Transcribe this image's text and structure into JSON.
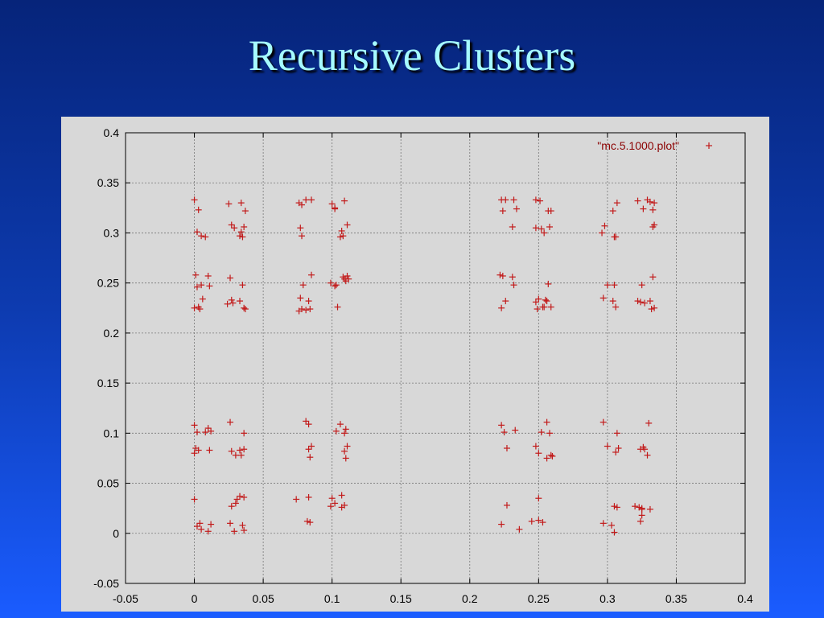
{
  "slide": {
    "title": "Recursive Clusters"
  },
  "colors": {
    "background_top": "#06247a",
    "background_bottom": "#1a5cff",
    "title": "#a6fbff",
    "plot_bg": "#d8d8d8",
    "marker": "#c21a1a"
  },
  "chart_data": {
    "type": "scatter",
    "title": "",
    "xlabel": "",
    "ylabel": "",
    "xlim": [
      -0.05,
      0.4
    ],
    "ylim": [
      -0.05,
      0.4
    ],
    "xticks": [
      "-0.05",
      "0",
      "0.05",
      "0.1",
      "0.15",
      "0.2",
      "0.25",
      "0.3",
      "0.35",
      "0.4"
    ],
    "yticks": [
      "-0.05",
      "0",
      "0.05",
      "0.1",
      "0.15",
      "0.2",
      "0.25",
      "0.3",
      "0.35",
      "0.4"
    ],
    "grid": true,
    "legend": {
      "position": "top-right",
      "entries": [
        "\"mc.5.1000.plot\""
      ]
    },
    "marker": "+",
    "series": [
      {
        "name": "\"mc.5.1000.plot\"",
        "x": [
          0.0,
          0.003,
          0.002,
          0.005,
          0.008,
          0.025,
          0.034,
          0.037,
          0.027,
          0.029,
          0.033,
          0.035,
          0.036,
          0.034,
          0.076,
          0.078,
          0.081,
          0.085,
          0.077,
          0.078,
          0.1,
          0.102,
          0.109,
          0.111,
          0.108,
          0.106,
          0.107,
          0.102,
          0.223,
          0.226,
          0.224,
          0.232,
          0.234,
          0.231,
          0.248,
          0.251,
          0.257,
          0.259,
          0.248,
          0.252,
          0.258,
          0.254,
          0.298,
          0.307,
          0.304,
          0.306,
          0.329,
          0.331,
          0.333,
          0.322,
          0.326,
          0.334,
          0.333,
          0.334,
          0.305,
          0.296,
          0.0,
          0.003,
          0.004,
          0.006,
          0.005,
          0.01,
          0.011,
          0.001,
          0.002,
          0.027,
          0.033,
          0.037,
          0.024,
          0.036,
          0.035,
          0.026,
          0.028,
          0.076,
          0.078,
          0.081,
          0.084,
          0.077,
          0.079,
          0.085,
          0.083,
          0.099,
          0.103,
          0.11,
          0.108,
          0.111,
          0.112,
          0.104,
          0.102,
          0.109,
          0.223,
          0.226,
          0.231,
          0.232,
          0.222,
          0.224,
          0.25,
          0.255,
          0.248,
          0.254,
          0.249,
          0.253,
          0.256,
          0.257,
          0.259,
          0.297,
          0.304,
          0.306,
          0.305,
          0.3,
          0.322,
          0.324,
          0.331,
          0.334,
          0.332,
          0.325,
          0.327,
          0.333,
          0.0,
          0.002,
          0.008,
          0.01,
          0.012,
          0.001,
          0.0,
          0.003,
          0.011,
          0.026,
          0.033,
          0.036,
          0.034,
          0.027,
          0.03,
          0.036,
          0.081,
          0.083,
          0.083,
          0.085,
          0.084,
          0.106,
          0.11,
          0.109,
          0.111,
          0.109,
          0.103,
          0.11,
          0.223,
          0.225,
          0.233,
          0.227,
          0.252,
          0.256,
          0.248,
          0.258,
          0.256,
          0.25,
          0.259,
          0.26,
          0.297,
          0.307,
          0.308,
          0.306,
          0.3,
          0.33,
          0.326,
          0.324,
          0.329,
          0.327,
          0.0,
          0.002,
          0.005,
          0.004,
          0.012,
          0.01,
          0.026,
          0.029,
          0.035,
          0.036,
          0.031,
          0.033,
          0.036,
          0.027,
          0.03,
          0.074,
          0.083,
          0.082,
          0.1,
          0.107,
          0.107,
          0.109,
          0.099,
          0.102,
          0.084,
          0.223,
          0.227,
          0.236,
          0.245,
          0.25,
          0.253,
          0.25,
          0.297,
          0.303,
          0.305,
          0.307,
          0.305,
          0.323,
          0.325,
          0.325,
          0.324,
          0.331,
          0.325,
          0.32
        ],
        "y": [
          0.333,
          0.323,
          0.301,
          0.297,
          0.296,
          0.329,
          0.33,
          0.322,
          0.308,
          0.305,
          0.297,
          0.296,
          0.306,
          0.301,
          0.33,
          0.328,
          0.333,
          0.333,
          0.305,
          0.297,
          0.329,
          0.324,
          0.332,
          0.308,
          0.297,
          0.296,
          0.302,
          0.325,
          0.333,
          0.333,
          0.322,
          0.333,
          0.324,
          0.306,
          0.333,
          0.332,
          0.322,
          0.322,
          0.305,
          0.304,
          0.306,
          0.3,
          0.307,
          0.33,
          0.322,
          0.296,
          0.333,
          0.331,
          0.323,
          0.332,
          0.324,
          0.33,
          0.306,
          0.308,
          0.296,
          0.3,
          0.225,
          0.226,
          0.224,
          0.234,
          0.248,
          0.257,
          0.247,
          0.258,
          0.246,
          0.233,
          0.232,
          0.224,
          0.229,
          0.225,
          0.248,
          0.255,
          0.23,
          0.222,
          0.224,
          0.223,
          0.224,
          0.235,
          0.248,
          0.258,
          0.232,
          0.25,
          0.248,
          0.252,
          0.256,
          0.257,
          0.254,
          0.226,
          0.247,
          0.254,
          0.225,
          0.232,
          0.256,
          0.248,
          0.258,
          0.257,
          0.234,
          0.233,
          0.231,
          0.226,
          0.224,
          0.226,
          0.232,
          0.249,
          0.226,
          0.235,
          0.232,
          0.226,
          0.248,
          0.248,
          0.232,
          0.231,
          0.232,
          0.225,
          0.224,
          0.248,
          0.23,
          0.256,
          0.108,
          0.101,
          0.101,
          0.105,
          0.102,
          0.085,
          0.08,
          0.083,
          0.083,
          0.111,
          0.083,
          0.1,
          0.078,
          0.082,
          0.078,
          0.084,
          0.112,
          0.109,
          0.084,
          0.087,
          0.076,
          0.109,
          0.104,
          0.1,
          0.087,
          0.082,
          0.102,
          0.075,
          0.108,
          0.101,
          0.103,
          0.085,
          0.101,
          0.111,
          0.087,
          0.1,
          0.075,
          0.08,
          0.078,
          0.077,
          0.111,
          0.1,
          0.085,
          0.081,
          0.087,
          0.11,
          0.086,
          0.084,
          0.078,
          0.084,
          0.034,
          0.007,
          0.004,
          0.01,
          0.009,
          0.002,
          0.01,
          0.002,
          0.008,
          0.003,
          0.034,
          0.037,
          0.036,
          0.027,
          0.03,
          0.034,
          0.036,
          0.012,
          0.035,
          0.038,
          0.026,
          0.028,
          0.027,
          0.03,
          0.011,
          0.009,
          0.028,
          0.004,
          0.012,
          0.035,
          0.011,
          0.013,
          0.01,
          0.008,
          0.001,
          0.026,
          0.027,
          0.026,
          0.025,
          0.024,
          0.012,
          0.024,
          0.018,
          0.027
        ]
      }
    ]
  }
}
